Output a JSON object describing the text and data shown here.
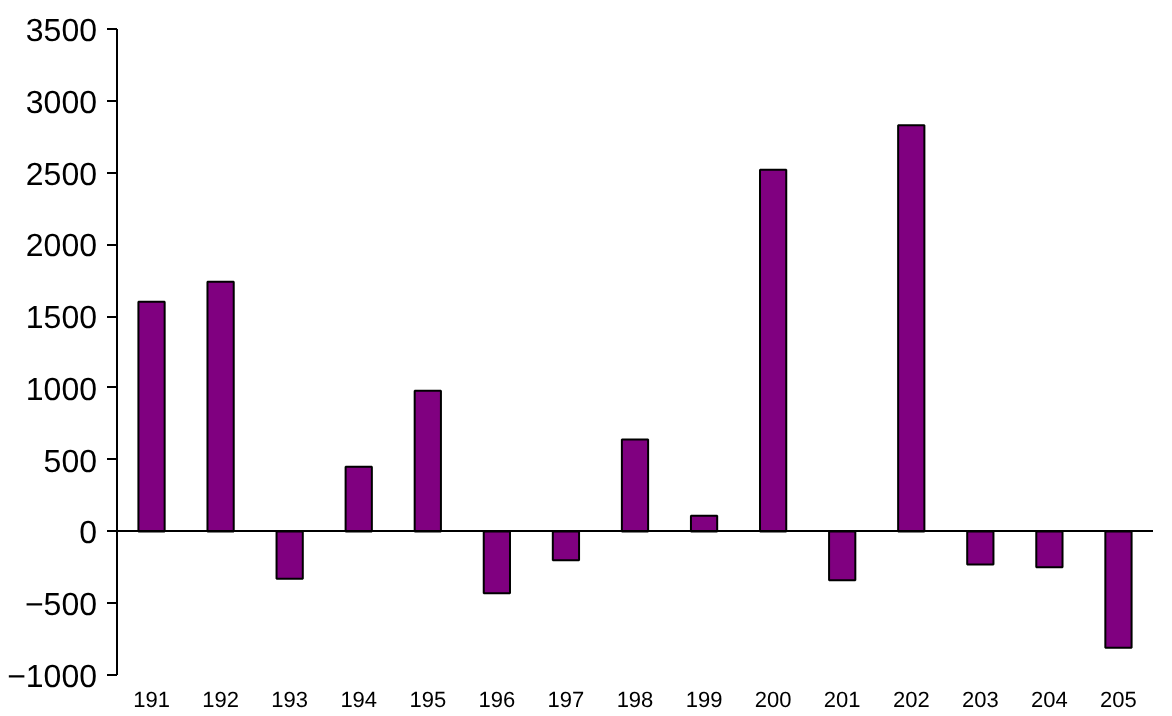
{
  "chart_data": {
    "type": "bar",
    "categories": [
      "191",
      "192",
      "193",
      "194",
      "195",
      "196",
      "197",
      "198",
      "199",
      "200",
      "201",
      "202",
      "203",
      "204",
      "205"
    ],
    "values": [
      1600,
      1740,
      -330,
      450,
      980,
      -430,
      -200,
      640,
      110,
      2520,
      -340,
      2830,
      -230,
      -250,
      -810
    ],
    "color": "#800080",
    "yticks": [
      -1000,
      -500,
      0,
      500,
      1000,
      1500,
      2000,
      2500,
      3000,
      3500
    ],
    "ylim": [
      -1000,
      3500
    ]
  }
}
